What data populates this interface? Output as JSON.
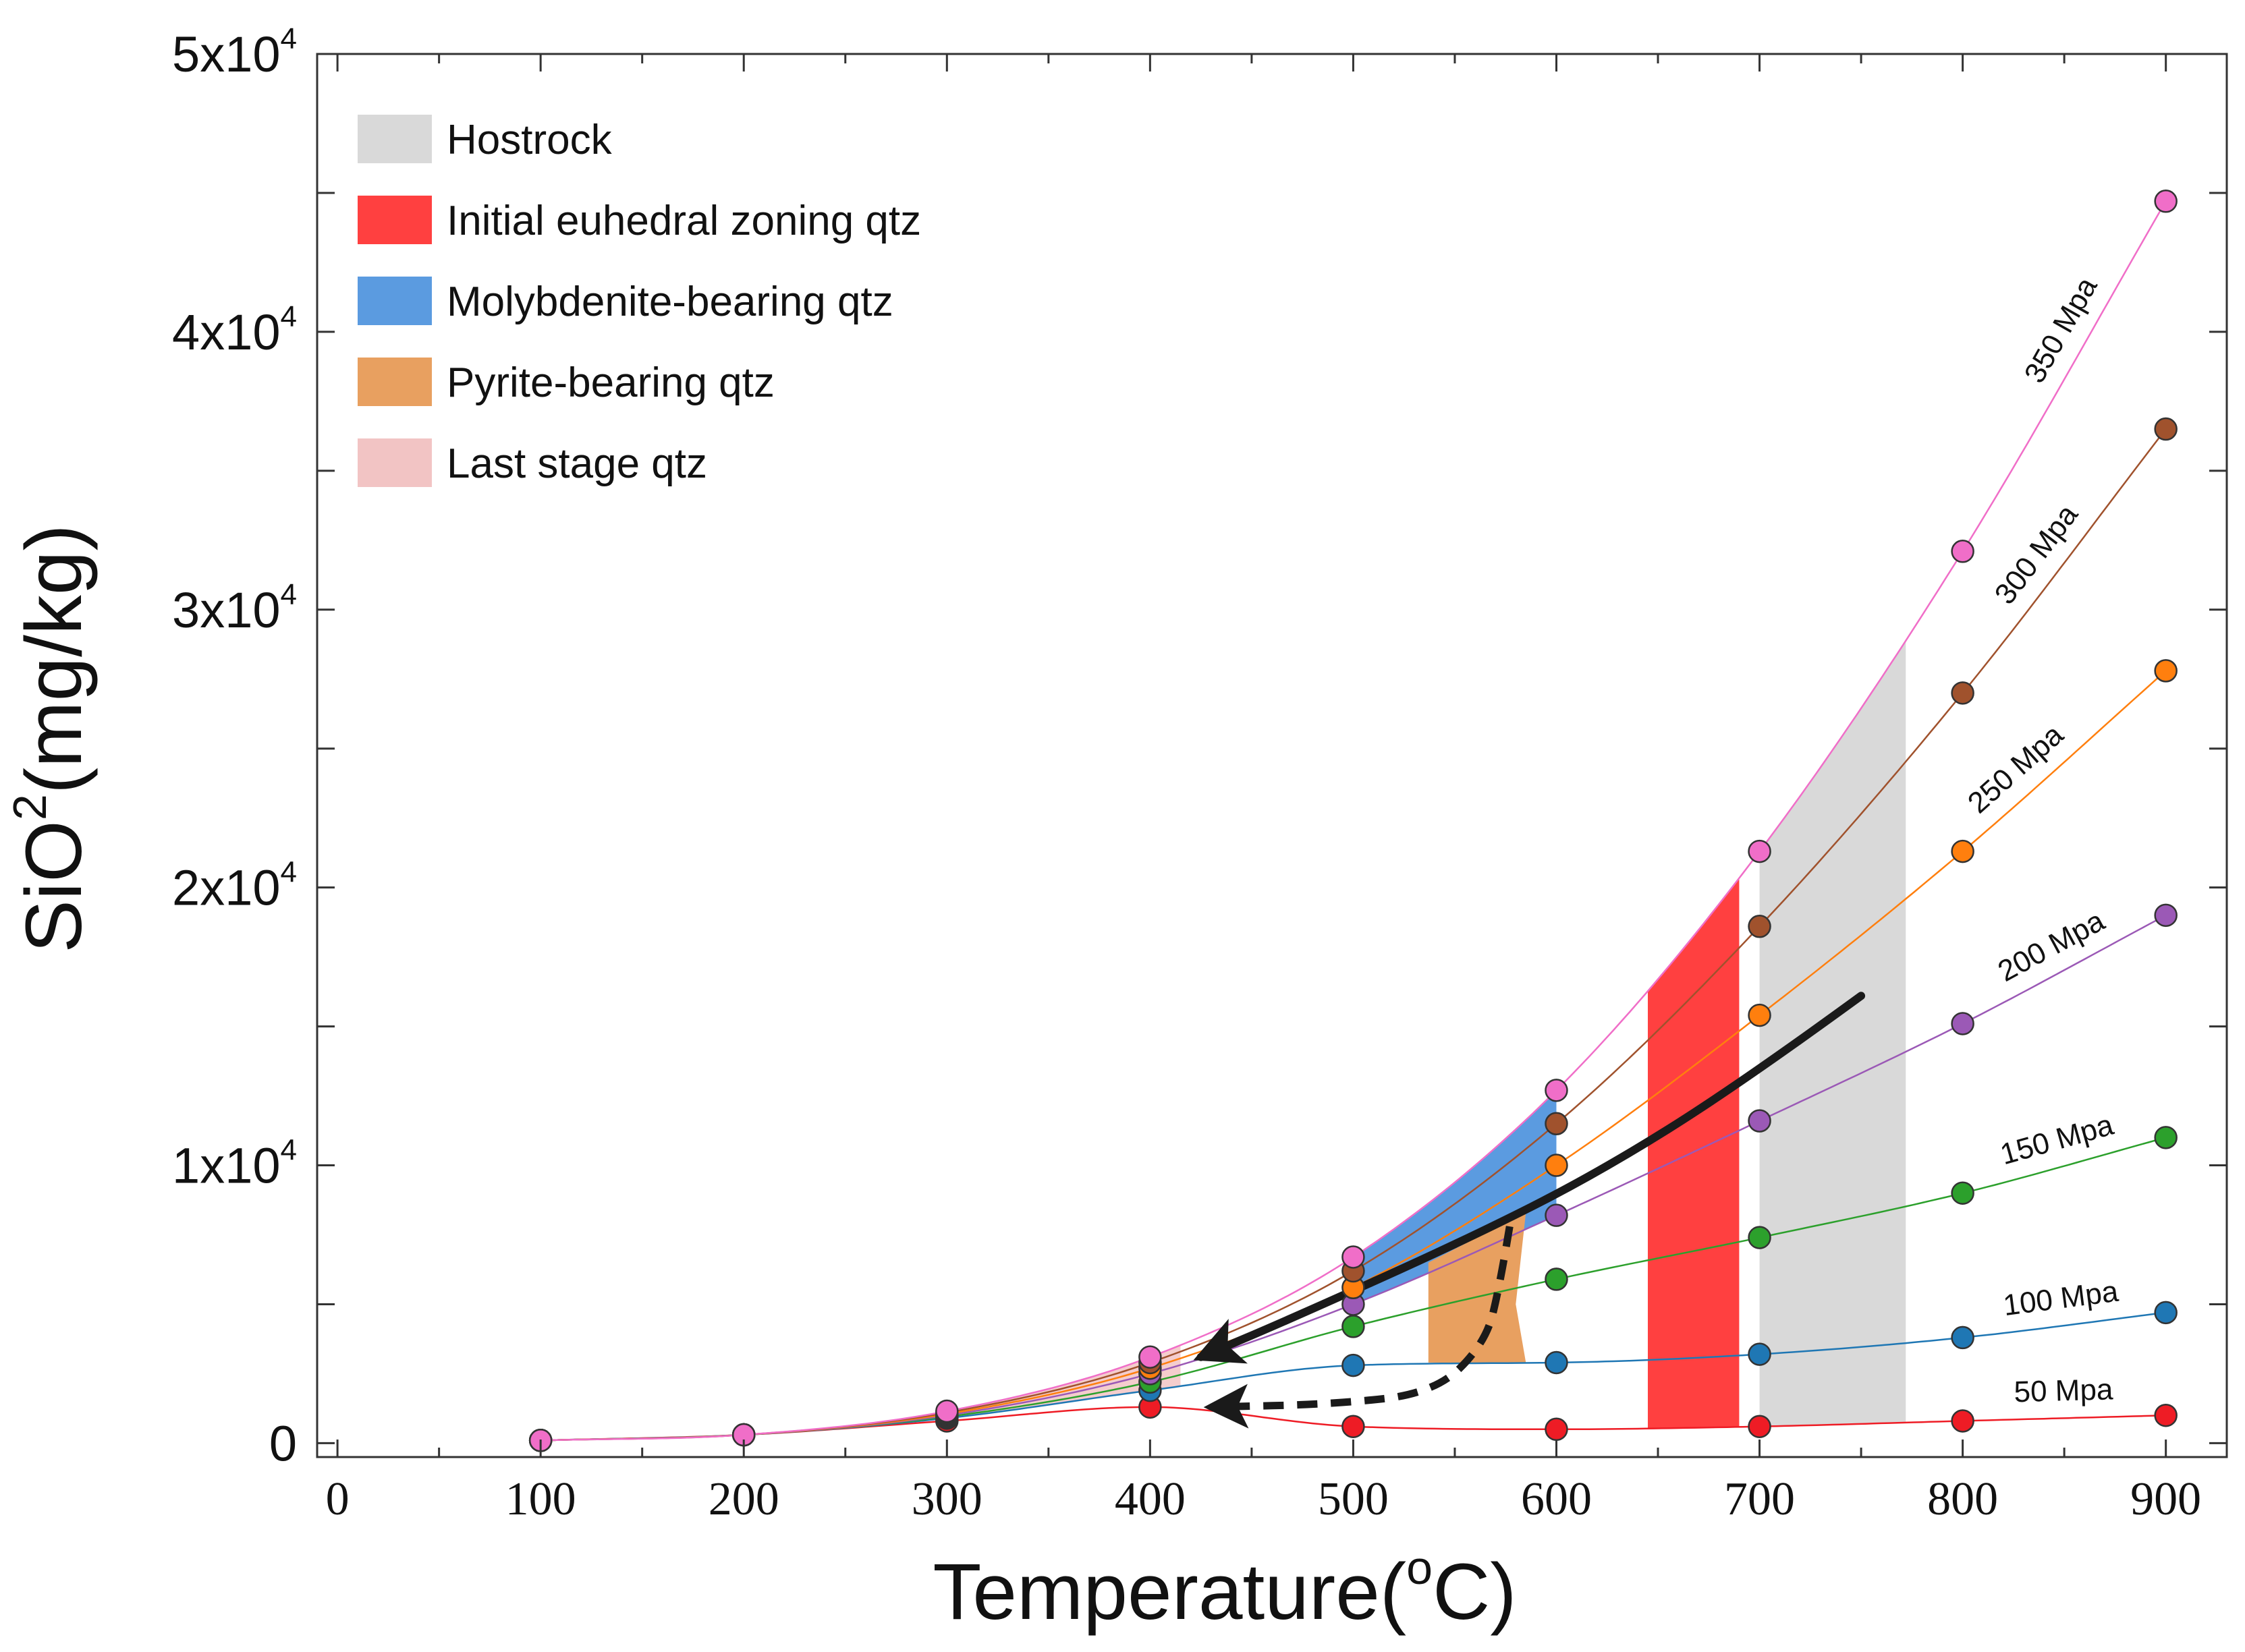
{
  "chart_data": {
    "type": "line",
    "title": "",
    "xlabel": "Temperature(oC)",
    "xlabel_base": "Temperature(",
    "xlabel_sup": "o",
    "xlabel_tail": "C)",
    "ylabel": "SiO2(mg/kg)",
    "ylabel_base": "SiO",
    "ylabel_sup": "2",
    "ylabel_tail": "(mg/kg)",
    "xlim": [
      -10,
      930
    ],
    "ylim": [
      -500,
      50000
    ],
    "grid": false,
    "legend_position": "top-left",
    "x_ticks": [
      0,
      100,
      200,
      300,
      400,
      500,
      600,
      700,
      800,
      900
    ],
    "x_tick_labels": [
      "0",
      "100",
      "200",
      "300",
      "400",
      "500",
      "600",
      "700",
      "800",
      "900"
    ],
    "y_ticks": [
      0,
      10000,
      20000,
      30000,
      40000,
      50000
    ],
    "y_tick_labels": [
      {
        "value": 0,
        "base": "0",
        "exp": ""
      },
      {
        "value": 10000,
        "base": "1x10",
        "exp": "4"
      },
      {
        "value": 20000,
        "base": "2x10",
        "exp": "4"
      },
      {
        "value": 30000,
        "base": "3x10",
        "exp": "4"
      },
      {
        "value": 40000,
        "base": "4x10",
        "exp": "4"
      },
      {
        "value": 50000,
        "base": "5x10",
        "exp": "4"
      }
    ],
    "y_minor_ticks": [
      5000,
      15000,
      25000,
      35000,
      45000
    ],
    "x": [
      100,
      200,
      300,
      400,
      500,
      600,
      700,
      800,
      900
    ],
    "series": [
      {
        "name": "50 Mpa",
        "color": "#ee1c25",
        "values": [
          100,
          300,
          800,
          1300,
          600,
          500,
          600,
          800,
          1000
        ]
      },
      {
        "name": "100 Mpa",
        "color": "#1f77b4",
        "values": [
          100,
          300,
          900,
          1900,
          2800,
          2900,
          3200,
          3800,
          4700
        ]
      },
      {
        "name": "150 Mpa",
        "color": "#2ca02c",
        "values": [
          100,
          300,
          950,
          2200,
          4200,
          5900,
          7400,
          9000,
          11000
        ]
      },
      {
        "name": "200 Mpa",
        "color": "#9b59b6",
        "values": [
          100,
          300,
          1000,
          2500,
          5000,
          8200,
          11600,
          15100,
          19000
        ]
      },
      {
        "name": "250 Mpa",
        "color": "#ff7f0e",
        "values": [
          100,
          300,
          1050,
          2700,
          5600,
          10000,
          15400,
          21300,
          27800
        ]
      },
      {
        "name": "300 Mpa",
        "color": "#a0522d",
        "values": [
          100,
          300,
          1100,
          2900,
          6200,
          11500,
          18600,
          27000,
          36500
        ]
      },
      {
        "name": "350 Mpa",
        "color": "#f06ec8",
        "values": [
          100,
          300,
          1150,
          3100,
          6700,
          12700,
          21300,
          32100,
          44700
        ]
      }
    ],
    "legend": [
      {
        "label": "Hostrock",
        "color": "#d9d9d9"
      },
      {
        "label": "Initial euhedral zoning qtz",
        "color": "#ff4040"
      },
      {
        "label": "Molybdenite-bearing qtz",
        "color": "#5b9be0"
      },
      {
        "label": "Pyrite-bearing qtz",
        "color": "#e8a060"
      },
      {
        "label": "Last stage qtz",
        "color": "#f2c4c4"
      }
    ],
    "regions": [
      {
        "label": "Hostrock",
        "color": "#d9d9d9",
        "x_range": [
          700,
          772
        ],
        "lower": "50 Mpa",
        "upper": "350 Mpa"
      },
      {
        "label": "Initial euhedral zoning qtz",
        "color": "#ff4040",
        "x_range": [
          645,
          690
        ],
        "lower": "50 Mpa",
        "upper": "350 Mpa"
      },
      {
        "label": "Molybdenite-bearing qtz",
        "color": "#5b9be0",
        "x_range": [
          500,
          600
        ],
        "lower": "200 Mpa",
        "upper": "350 Mpa"
      },
      {
        "label": "Pyrite-bearing qtz",
        "color": "#e8a060",
        "points": [
          [
            537,
            2900
          ],
          [
            537,
            6500
          ],
          [
            585,
            8300
          ],
          [
            580,
            5000
          ],
          [
            585,
            2900
          ]
        ]
      },
      {
        "label": "Last stage qtz",
        "color": "#f2c4c4",
        "x_range": [
          300,
          415
        ],
        "lower": "100 Mpa",
        "upper": "350 Mpa"
      }
    ],
    "paths": [
      {
        "style": "solid",
        "points": [
          [
            750,
            16100
          ],
          [
            690,
            12900
          ],
          [
            620,
            9700
          ],
          [
            555,
            7300
          ],
          [
            470,
            4500
          ],
          [
            425,
            3100
          ]
        ]
      },
      {
        "style": "dashed",
        "points": [
          [
            577,
            7800
          ],
          [
            572,
            5600
          ],
          [
            565,
            3600
          ],
          [
            540,
            1800
          ],
          [
            490,
            1400
          ],
          [
            430,
            1300
          ]
        ]
      }
    ]
  }
}
